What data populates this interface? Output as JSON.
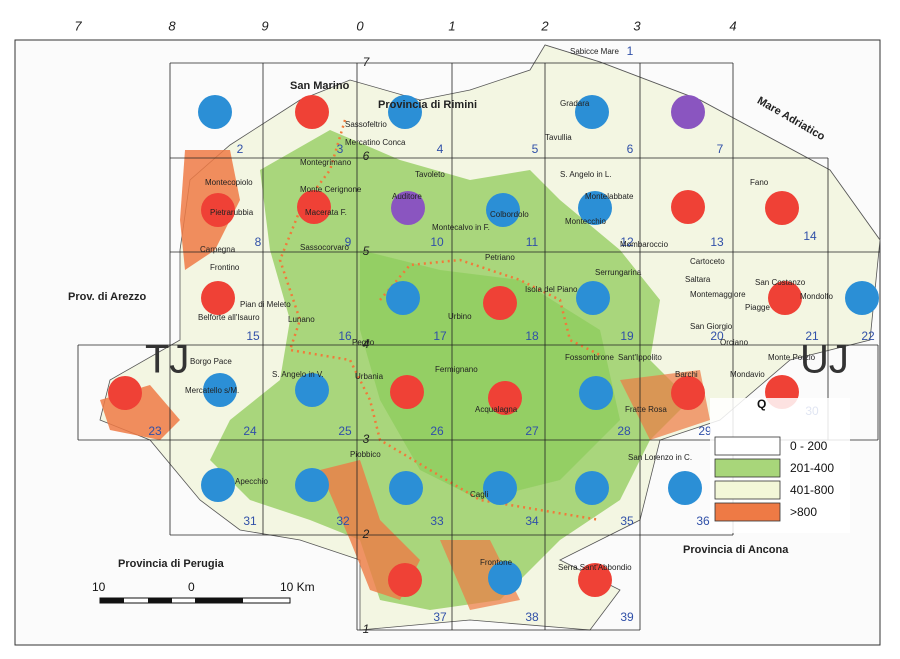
{
  "top_numbers": [
    "7",
    "8",
    "9",
    "0",
    "1",
    "2",
    "3",
    "4"
  ],
  "side_numbers": [
    "7",
    "6",
    "5",
    "4",
    "3",
    "2",
    "1"
  ],
  "regions": {
    "san_marino": "San Marino",
    "rimini": "Provincia di Rimini",
    "arezzo": "Prov. di Arezzo",
    "perugia": "Provincia di Perugia",
    "ancona": "Provincia di Ancona",
    "sea": "Mare Adriatico",
    "zone_west": "TJ",
    "zone_east": "UJ"
  },
  "cells": [
    {
      "label": "1"
    },
    {
      "label": "2",
      "circle": "#2b8fd6"
    },
    {
      "label": "3",
      "circle": "#ef4136"
    },
    {
      "label": "4",
      "circle": "#2b8fd6"
    },
    {
      "label": "5"
    },
    {
      "label": "6",
      "circle": "#2b8fd6"
    },
    {
      "label": "7",
      "circle": "#8a55c0"
    },
    {
      "label": "8",
      "circle": "#ef4136"
    },
    {
      "label": "9",
      "circle": "#ef4136"
    },
    {
      "label": "10",
      "circle": "#8a55c0"
    },
    {
      "label": "11",
      "circle": "#2b8fd6"
    },
    {
      "label": "12",
      "circle": "#2b8fd6"
    },
    {
      "label": "13",
      "circle": "#ef4136"
    },
    {
      "label": "14",
      "circle": "#ef4136"
    },
    {
      "label": "15",
      "circle": "#ef4136"
    },
    {
      "label": "16"
    },
    {
      "label": "17",
      "circle": "#2b8fd6"
    },
    {
      "label": "18",
      "circle": "#ef4136"
    },
    {
      "label": "19",
      "circle": "#2b8fd6"
    },
    {
      "label": "20"
    },
    {
      "label": "21",
      "circle": "#ef4136"
    },
    {
      "label": "22",
      "circle": "#2b8fd6"
    },
    {
      "label": "23",
      "circle": "#ef4136"
    },
    {
      "label": "24",
      "circle": "#2b8fd6"
    },
    {
      "label": "25",
      "circle": "#2b8fd6"
    },
    {
      "label": "26",
      "circle": "#ef4136"
    },
    {
      "label": "27",
      "circle": "#ef4136"
    },
    {
      "label": "28",
      "circle": "#2b8fd6"
    },
    {
      "label": "29",
      "circle": "#ef4136"
    },
    {
      "label": "30",
      "circle": "#ef4136"
    },
    {
      "label": "31",
      "circle": "#2b8fd6"
    },
    {
      "label": "32",
      "circle": "#2b8fd6"
    },
    {
      "label": "33",
      "circle": "#2b8fd6"
    },
    {
      "label": "34",
      "circle": "#2b8fd6"
    },
    {
      "label": "35",
      "circle": "#2b8fd6"
    },
    {
      "label": "36",
      "circle": "#2b8fd6"
    },
    {
      "label": "37",
      "circle": "#ef4136"
    },
    {
      "label": "38",
      "circle": "#2b8fd6"
    },
    {
      "label": "39",
      "circle": "#ef4136"
    }
  ],
  "places": [
    "Sabicce Mare",
    "Gradara",
    "Tavullia",
    "Sassofeltrio",
    "Mercatino Conca",
    "Montegrimano",
    "Montecopiolo",
    "Monte Cerignone",
    "Pietrarubbia",
    "Macerata F.",
    "Carpegna",
    "Frontino",
    "Sassocorvaro",
    "Pian di Meleto",
    "Belforte all'Isauro",
    "Lunano",
    "Tavoleto",
    "Auditore",
    "Montecalvo in F.",
    "S. Angelo in L.",
    "Montelabbate",
    "Montecchio",
    "Colbordolo",
    "Mombaroccio",
    "Fano",
    "Cartoceto",
    "Saltara",
    "Montemaggiore",
    "Serrungarina",
    "Petriano",
    "Isola del Piano",
    "Urbino",
    "Fossombrone",
    "Sant'Ippolito",
    "Barchi",
    "Mondavio",
    "Monte Porzio",
    "San Costanzo",
    "Mondolfo",
    "Piagge",
    "San Giorgio",
    "Orciano",
    "Borgo Pace",
    "S. Angelo in V.",
    "Urbania",
    "Peglio",
    "Fermignano",
    "Mercatello s/M.",
    "Acqualagna",
    "Fratte Rosa",
    "Apecchio",
    "Piobbico",
    "Cagli",
    "San Lorenzo in C.",
    "Frontone",
    "Serra Sant'Abbondio"
  ],
  "legend": {
    "title": "Q",
    "items": [
      {
        "label": "0 - 200",
        "color": "#ffffff"
      },
      {
        "label": "201-400",
        "color": "#a8d67a"
      },
      {
        "label": "401-800",
        "color": "#f3f7d8"
      },
      {
        "label": ">800",
        "color": "#ee7a45"
      }
    ]
  },
  "scale": [
    "10",
    "0",
    "10 Km"
  ]
}
